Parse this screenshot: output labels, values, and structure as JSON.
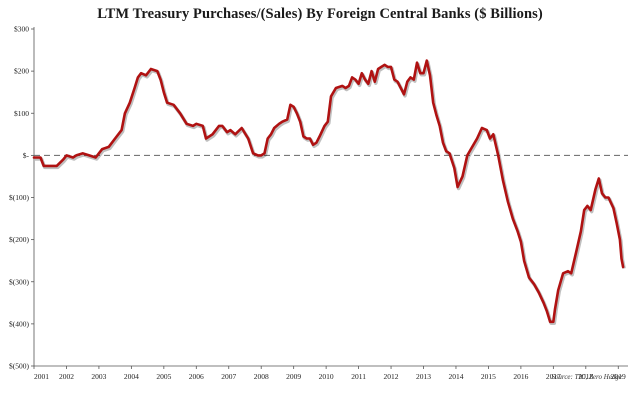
{
  "chart_data": {
    "type": "line",
    "title": "LTM Treasury Purchases/(Sales) By Foreign Central Banks ($ Billions)",
    "xlabel": "",
    "ylabel": "",
    "ylim": [
      -500,
      300
    ],
    "xlim": [
      2001.0,
      2019.3
    ],
    "yticks": [
      {
        "value": 300,
        "label": "$300"
      },
      {
        "value": 200,
        "label": "$200"
      },
      {
        "value": 100,
        "label": "$100"
      },
      {
        "value": 0,
        "label": "$-"
      },
      {
        "value": -100,
        "label": "$(100)"
      },
      {
        "value": -200,
        "label": "$(200)"
      },
      {
        "value": -300,
        "label": "$(300)"
      },
      {
        "value": -400,
        "label": "$(400)"
      },
      {
        "value": -500,
        "label": "$(500)"
      }
    ],
    "xticks": [
      "2001",
      "2002",
      "2003",
      "2004",
      "2005",
      "2006",
      "2007",
      "2008",
      "2009",
      "2010",
      "2011",
      "2012",
      "2013",
      "2014",
      "2015",
      "2016",
      "2017",
      "2018",
      "2019"
    ],
    "grid": false,
    "zero_line": "dashed",
    "series": [
      {
        "color": "#b01212",
        "points": [
          [
            2001.0,
            -5
          ],
          [
            2001.2,
            -5
          ],
          [
            2001.3,
            -25
          ],
          [
            2001.5,
            -25
          ],
          [
            2001.7,
            -25
          ],
          [
            2001.9,
            -10
          ],
          [
            2002.0,
            0
          ],
          [
            2002.2,
            -5
          ],
          [
            2002.3,
            0
          ],
          [
            2002.5,
            5
          ],
          [
            2002.7,
            0
          ],
          [
            2002.9,
            -5
          ],
          [
            2003.0,
            5
          ],
          [
            2003.1,
            15
          ],
          [
            2003.3,
            20
          ],
          [
            2003.5,
            40
          ],
          [
            2003.7,
            60
          ],
          [
            2003.8,
            100
          ],
          [
            2003.95,
            125
          ],
          [
            2004.1,
            160
          ],
          [
            2004.2,
            185
          ],
          [
            2004.3,
            195
          ],
          [
            2004.45,
            190
          ],
          [
            2004.6,
            205
          ],
          [
            2004.8,
            200
          ],
          [
            2004.9,
            180
          ],
          [
            2005.0,
            150
          ],
          [
            2005.1,
            125
          ],
          [
            2005.3,
            120
          ],
          [
            2005.5,
            100
          ],
          [
            2005.7,
            75
          ],
          [
            2005.9,
            70
          ],
          [
            2006.0,
            75
          ],
          [
            2006.2,
            70
          ],
          [
            2006.3,
            40
          ],
          [
            2006.5,
            50
          ],
          [
            2006.7,
            70
          ],
          [
            2006.8,
            70
          ],
          [
            2006.95,
            55
          ],
          [
            2007.05,
            60
          ],
          [
            2007.2,
            50
          ],
          [
            2007.4,
            65
          ],
          [
            2007.6,
            40
          ],
          [
            2007.75,
            5
          ],
          [
            2007.9,
            0
          ],
          [
            2008.0,
            0
          ],
          [
            2008.1,
            5
          ],
          [
            2008.2,
            40
          ],
          [
            2008.3,
            50
          ],
          [
            2008.4,
            65
          ],
          [
            2008.55,
            75
          ],
          [
            2008.65,
            80
          ],
          [
            2008.8,
            85
          ],
          [
            2008.9,
            120
          ],
          [
            2009.0,
            115
          ],
          [
            2009.1,
            100
          ],
          [
            2009.2,
            80
          ],
          [
            2009.3,
            45
          ],
          [
            2009.4,
            40
          ],
          [
            2009.5,
            40
          ],
          [
            2009.6,
            25
          ],
          [
            2009.7,
            30
          ],
          [
            2009.8,
            45
          ],
          [
            2009.95,
            70
          ],
          [
            2010.05,
            80
          ],
          [
            2010.15,
            140
          ],
          [
            2010.3,
            160
          ],
          [
            2010.5,
            165
          ],
          [
            2010.6,
            160
          ],
          [
            2010.7,
            165
          ],
          [
            2010.8,
            185
          ],
          [
            2010.9,
            180
          ],
          [
            2011.0,
            170
          ],
          [
            2011.1,
            195
          ],
          [
            2011.2,
            180
          ],
          [
            2011.3,
            170
          ],
          [
            2011.4,
            200
          ],
          [
            2011.5,
            175
          ],
          [
            2011.6,
            205
          ],
          [
            2011.8,
            215
          ],
          [
            2011.9,
            210
          ],
          [
            2012.0,
            210
          ],
          [
            2012.1,
            180
          ],
          [
            2012.2,
            175
          ],
          [
            2012.3,
            160
          ],
          [
            2012.4,
            145
          ],
          [
            2012.5,
            175
          ],
          [
            2012.6,
            185
          ],
          [
            2012.7,
            180
          ],
          [
            2012.8,
            220
          ],
          [
            2012.9,
            195
          ],
          [
            2013.0,
            195
          ],
          [
            2013.1,
            225
          ],
          [
            2013.2,
            190
          ],
          [
            2013.3,
            125
          ],
          [
            2013.4,
            95
          ],
          [
            2013.5,
            70
          ],
          [
            2013.6,
            30
          ],
          [
            2013.7,
            10
          ],
          [
            2013.8,
            5
          ],
          [
            2013.95,
            -30
          ],
          [
            2014.05,
            -75
          ],
          [
            2014.2,
            -50
          ],
          [
            2014.35,
            0
          ],
          [
            2014.5,
            20
          ],
          [
            2014.65,
            40
          ],
          [
            2014.8,
            65
          ],
          [
            2014.95,
            60
          ],
          [
            2015.05,
            40
          ],
          [
            2015.15,
            50
          ],
          [
            2015.3,
            0
          ],
          [
            2015.45,
            -60
          ],
          [
            2015.6,
            -110
          ],
          [
            2015.75,
            -150
          ],
          [
            2015.9,
            -180
          ],
          [
            2016.0,
            -205
          ],
          [
            2016.1,
            -250
          ],
          [
            2016.25,
            -290
          ],
          [
            2016.4,
            -305
          ],
          [
            2016.55,
            -325
          ],
          [
            2016.7,
            -350
          ],
          [
            2016.8,
            -370
          ],
          [
            2016.9,
            -395
          ],
          [
            2017.0,
            -395
          ],
          [
            2017.05,
            -365
          ],
          [
            2017.15,
            -320
          ],
          [
            2017.3,
            -280
          ],
          [
            2017.45,
            -275
          ],
          [
            2017.55,
            -280
          ],
          [
            2017.7,
            -230
          ],
          [
            2017.85,
            -180
          ],
          [
            2017.95,
            -130
          ],
          [
            2018.05,
            -120
          ],
          [
            2018.15,
            -130
          ],
          [
            2018.3,
            -80
          ],
          [
            2018.4,
            -55
          ],
          [
            2018.5,
            -90
          ],
          [
            2018.6,
            -100
          ],
          [
            2018.7,
            -100
          ],
          [
            2018.85,
            -125
          ],
          [
            2018.95,
            -160
          ],
          [
            2019.05,
            -200
          ],
          [
            2019.1,
            -245
          ],
          [
            2019.15,
            -265
          ]
        ]
      }
    ],
    "annotations": {
      "source": "Source: TIC, Zero Hedge"
    }
  }
}
